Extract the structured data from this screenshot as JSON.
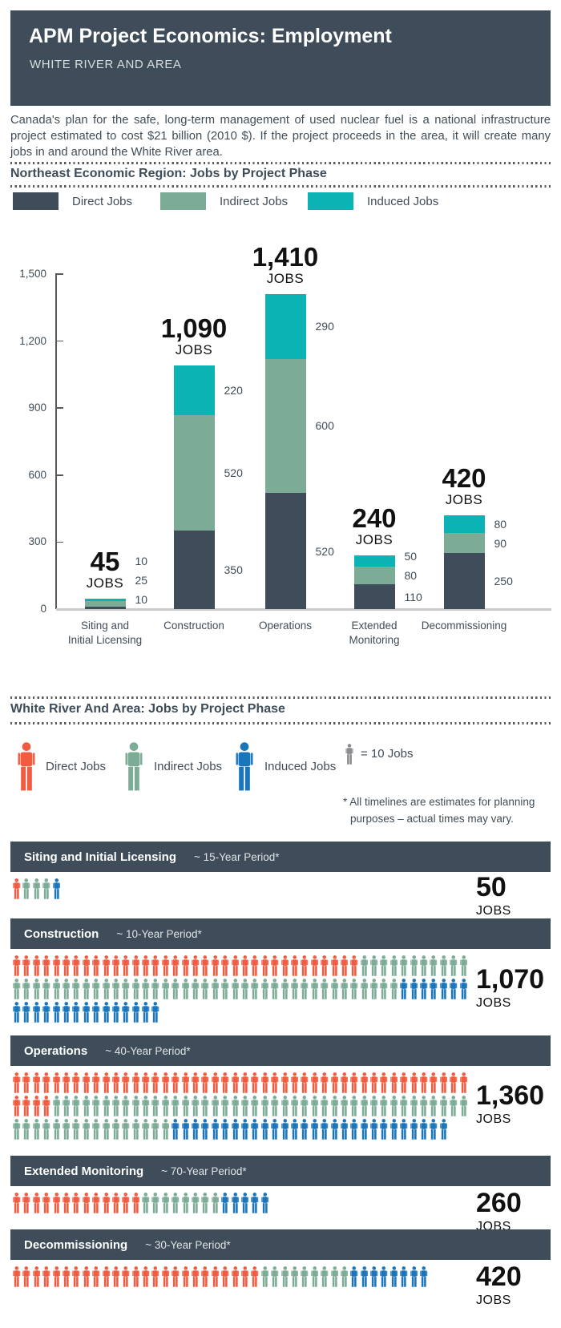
{
  "header": {
    "title": "APM Project Economics: Employment",
    "subtitle": "WHITE RIVER AND AREA"
  },
  "intro": "Canada's plan for the safe, long-term management of used nuclear fuel is a national infrastructure project estimated to cost $21 billion (2010 $). If the project proceeds in the area, it will create many jobs in and around the White River area.",
  "colors": {
    "slate": "#3E4D59",
    "sage": "#7CAC95",
    "teal": "#0CB3B4",
    "orange": "#F15B40",
    "blue": "#1B75BB",
    "gray": "#8A8C8F",
    "text": "#414D56",
    "rule": "#58595B",
    "axis_baseline": "#C9CACC",
    "total_label": "#111111"
  },
  "section1": {
    "title": "Northeast Economic Region: Jobs by Project Phase",
    "legend": [
      {
        "label": "Direct Jobs",
        "color_key": "slate"
      },
      {
        "label": "Indirect Jobs",
        "color_key": "sage"
      },
      {
        "label": "Induced Jobs",
        "color_key": "teal"
      }
    ]
  },
  "section2": {
    "title": "White River And Area: Jobs by Project Phase",
    "legend": [
      {
        "label": "Direct Jobs",
        "color_key": "orange"
      },
      {
        "label": "Indirect Jobs",
        "color_key": "sage"
      },
      {
        "label": "Induced Jobs",
        "color_key": "blue"
      }
    ],
    "unit_label": "= 10 Jobs",
    "note_line1": "* All timelines are estimates for planning",
    "note_line2": "purposes – actual times may vary."
  },
  "chart_data": [
    {
      "type": "bar",
      "stacked": true,
      "title": "Northeast Economic Region: Jobs by Project Phase",
      "categories": [
        "Siting and Initial Licensing",
        "Construction",
        "Operations",
        "Extended Monitoring",
        "Decommissioning"
      ],
      "categories_lines": [
        [
          "Siting and",
          "Initial Licensing"
        ],
        [
          "Construction"
        ],
        [
          "Operations"
        ],
        [
          "Extended",
          "Monitoring"
        ],
        [
          "Decommissioning"
        ]
      ],
      "series": [
        {
          "name": "Direct Jobs",
          "color_key": "slate",
          "values": [
            10,
            350,
            520,
            110,
            250
          ]
        },
        {
          "name": "Indirect Jobs",
          "color_key": "sage",
          "values": [
            25,
            520,
            600,
            80,
            90
          ]
        },
        {
          "name": "Induced Jobs",
          "color_key": "teal",
          "values": [
            10,
            220,
            290,
            50,
            80
          ]
        }
      ],
      "totals": [
        "45",
        "1,090",
        "1,410",
        "240",
        "420"
      ],
      "totals_word": "JOBS",
      "yticks": {
        "values": [
          0,
          300,
          600,
          900,
          1200,
          1500
        ],
        "labels": [
          "0",
          "300",
          "600",
          "900",
          "1,200",
          "1,500"
        ]
      },
      "ylim": [
        0,
        1500
      ],
      "grid": false,
      "legend_position": "top"
    },
    {
      "type": "pictogram",
      "jobs_per_icon": 10,
      "phases": [
        {
          "name": "Siting and Initial Licensing",
          "period": "~ 15-Year Period*",
          "total": "50",
          "word": "JOBS",
          "breakdown": {
            "direct": 10,
            "indirect": 30,
            "induced": 10
          },
          "rows": [
            [
              {
                "color": "orange",
                "count": 1
              },
              {
                "color": "sage",
                "count": 3
              },
              {
                "color": "blue",
                "count": 1
              }
            ]
          ]
        },
        {
          "name": "Construction",
          "period": "~ 10-Year Period*",
          "total": "1,070",
          "word": "JOBS",
          "breakdown": {
            "direct": 350,
            "indirect": 500,
            "induced": 220
          },
          "rows": [
            [
              {
                "color": "orange",
                "count": 35
              },
              {
                "color": "sage",
                "count": 11
              }
            ],
            [
              {
                "color": "sage",
                "count": 39
              },
              {
                "color": "blue",
                "count": 7
              }
            ],
            [
              {
                "color": "blue",
                "count": 15
              }
            ]
          ]
        },
        {
          "name": "Operations",
          "period": "~ 40-Year Period*",
          "total": "1,360",
          "word": "JOBS",
          "breakdown": {
            "direct": 500,
            "indirect": 580,
            "induced": 280
          },
          "rows": [
            [
              {
                "color": "orange",
                "count": 46
              }
            ],
            [
              {
                "color": "orange",
                "count": 4
              },
              {
                "color": "sage",
                "count": 42
              }
            ],
            [
              {
                "color": "sage",
                "count": 16
              },
              {
                "color": "blue",
                "count": 28
              }
            ]
          ]
        },
        {
          "name": "Extended Monitoring",
          "period": "~ 70-Year Period*",
          "total": "260",
          "word": "JOBS",
          "breakdown": {
            "direct": 130,
            "indirect": 80,
            "induced": 50
          },
          "rows": [
            [
              {
                "color": "orange",
                "count": 13
              },
              {
                "color": "sage",
                "count": 8
              },
              {
                "color": "blue",
                "count": 5
              }
            ]
          ]
        },
        {
          "name": "Decommissioning",
          "period": "~ 30-Year Period*",
          "total": "420",
          "word": "JOBS",
          "breakdown": {
            "direct": 250,
            "indirect": 90,
            "induced": 80
          },
          "rows": [
            [
              {
                "color": "orange",
                "count": 25
              },
              {
                "color": "sage",
                "count": 9
              },
              {
                "color": "blue",
                "count": 8
              }
            ]
          ]
        }
      ]
    }
  ]
}
